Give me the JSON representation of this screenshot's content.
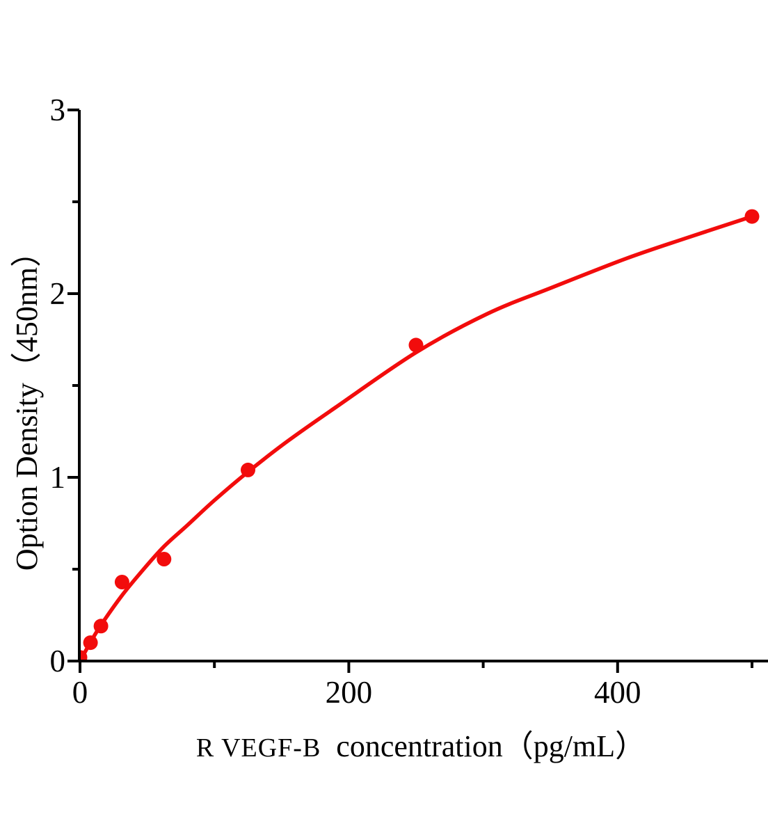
{
  "figure": {
    "background_color": "#ffffff",
    "axis_color": "#000000",
    "accent_color": "#f20c0c"
  },
  "chart_data": {
    "type": "scatter",
    "title": "",
    "xlabel_prefix": "R VEGF-B",
    "xlabel_rest": "concentration（pg/mL）",
    "ylabel": "Option Density（450nm）",
    "xlim": [
      0,
      512
    ],
    "ylim": [
      0,
      3
    ],
    "x_major_ticks": [
      0,
      200,
      400
    ],
    "x_minor_ticks": [
      100,
      300,
      500
    ],
    "y_major_ticks": [
      0,
      1,
      2,
      3
    ],
    "y_minor_ticks": [
      0.5,
      1.5,
      2.5
    ],
    "grid": false,
    "legend_position": "none",
    "series": [
      {
        "name": "standard-points",
        "type": "scatter",
        "marker": "circle",
        "color": "#f20c0c",
        "x": [
          0,
          7.8,
          15.6,
          31.25,
          62.5,
          125,
          250,
          500
        ],
        "y": [
          0.02,
          0.1,
          0.19,
          0.43,
          0.555,
          1.04,
          1.72,
          2.42
        ]
      },
      {
        "name": "fitted-curve",
        "type": "line",
        "color": "#f20c0c",
        "x": [
          0,
          8,
          16,
          31,
          45,
          62,
          80,
          100,
          125,
          155,
          190,
          250,
          303,
          350,
          406,
          450,
          500
        ],
        "y": [
          0.0,
          0.105,
          0.2,
          0.355,
          0.48,
          0.62,
          0.74,
          0.875,
          1.03,
          1.2,
          1.38,
          1.68,
          1.89,
          2.03,
          2.19,
          2.3,
          2.42
        ]
      }
    ]
  }
}
